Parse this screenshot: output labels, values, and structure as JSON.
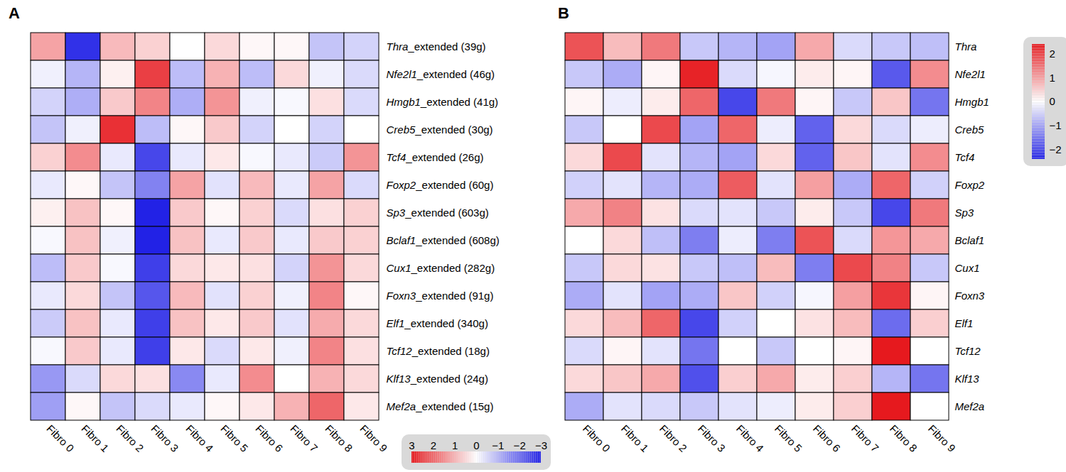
{
  "chart_data": [
    {
      "type": "heatmap",
      "title": "A",
      "x": [
        "Fibro 0",
        "Fibro 1",
        "Fibro 2",
        "Fibro 3",
        "Fibro 4",
        "Fibro 5",
        "Fibro 6",
        "Fibro 7",
        "Fibro 8",
        "Fibro 9"
      ],
      "y": [
        "Thra_extended (39g)",
        "Nfe2l1_extended (46g)",
        "Hmgb1_extended (41g)",
        "Creb5_extended (30g)",
        "Tcf4_extended (26g)",
        "Foxp2_extended (60g)",
        "Sp3_extended (603g)",
        "Bclaf1_extended (608g)",
        "Cux1_extended (282g)",
        "Foxn3_extended (91g)",
        "Elf1_extended (340g)",
        "Tcf12_extended (18g)",
        "Klf13_extended (24g)",
        "Mef2a_extended (15g)"
      ],
      "values": [
        [
          1.2,
          -2.8,
          0.9,
          0.6,
          0,
          0.5,
          0.1,
          0.1,
          -0.8,
          -0.6
        ],
        [
          -0.2,
          -1.0,
          0.2,
          2.5,
          -0.9,
          1.0,
          -0.9,
          0.5,
          -0.2,
          -0.5
        ],
        [
          -0.6,
          -1.1,
          0.7,
          1.6,
          -1.1,
          1.4,
          -0.2,
          -0.1,
          0.4,
          -0.5
        ],
        [
          -0.8,
          -0.2,
          2.7,
          -0.9,
          0.1,
          0.7,
          -0.6,
          0,
          -0.6,
          0
        ],
        [
          0.6,
          1.5,
          -0.3,
          -2.5,
          -0.3,
          0.3,
          -0.1,
          -0.3,
          -0.7,
          1.4
        ],
        [
          -0.3,
          0.1,
          -0.8,
          -1.7,
          1.2,
          -0.4,
          0.9,
          -0.3,
          1.2,
          -0.5
        ],
        [
          0.2,
          0.8,
          0.1,
          -3.0,
          0.7,
          0.1,
          0.6,
          -0.5,
          0.4,
          0.6
        ],
        [
          -0.1,
          0.8,
          -0.2,
          -3.0,
          0.8,
          -0.3,
          0.7,
          -0.3,
          0.7,
          0.6
        ],
        [
          -0.9,
          0.7,
          -0.1,
          -2.6,
          0.5,
          0.3,
          0.4,
          -0.6,
          1.4,
          0.5
        ],
        [
          -0.3,
          0.5,
          -0.8,
          -2.3,
          0.9,
          -0.4,
          0.6,
          -0.2,
          1.6,
          0.1
        ],
        [
          -0.7,
          0.8,
          -0.3,
          -2.6,
          0.8,
          0.3,
          0.7,
          -0.4,
          1.1,
          0.5
        ],
        [
          -0.1,
          0.7,
          -0.3,
          -2.6,
          0.3,
          -0.5,
          0.3,
          -0.2,
          1.6,
          0.4
        ],
        [
          -1.4,
          -0.5,
          0.5,
          0.4,
          -1.6,
          -0.3,
          1.5,
          0,
          1.0,
          0.5
        ],
        [
          -1.3,
          0.1,
          -0.8,
          -0.5,
          -0.3,
          0.1,
          0.3,
          1.0,
          2.0,
          0.3
        ]
      ],
      "color_range": [
        -3,
        3
      ],
      "color_ticks": [
        3,
        2,
        1,
        0,
        {
          "value": -1,
          "label": "−1"
        },
        {
          "value": -2,
          "label": "−2"
        },
        {
          "value": -3,
          "label": "−3"
        }
      ]
    },
    {
      "type": "heatmap",
      "title": "B",
      "x": [
        "Fibro 0",
        "Fibro 1",
        "Fibro 2",
        "Fibro 3",
        "Fibro 4",
        "Fibro 5",
        "Fibro 6",
        "Fibro 7",
        "Fibro 8",
        "Fibro 9"
      ],
      "y": [
        "Thra",
        "Nfe2l1",
        "Hmgb1",
        "Creb5",
        "Tcf4",
        "Foxp2",
        "Sp3",
        "Bclaf1",
        "Cux1",
        "Foxn3",
        "Elf1",
        "Tcf12",
        "Klf13",
        "Mef2a"
      ],
      "values": [
        [
          1.8,
          0.7,
          1.4,
          -0.6,
          -0.8,
          -1.0,
          0.9,
          -0.4,
          -0.6,
          -0.7
        ],
        [
          -0.6,
          -0.9,
          0.1,
          2.3,
          -0.4,
          -0.1,
          0.2,
          0.1,
          -1.8,
          1.2
        ],
        [
          0.1,
          -0.2,
          0.2,
          1.6,
          -2.0,
          1.4,
          0.1,
          -0.6,
          0.6,
          -1.5
        ],
        [
          -0.6,
          0,
          1.9,
          -1.0,
          1.6,
          -0.2,
          -1.7,
          0.4,
          -0.4,
          -0.2
        ],
        [
          0.4,
          1.9,
          -0.3,
          -0.8,
          -1.0,
          0.4,
          -1.7,
          0.6,
          -0.3,
          1.2
        ],
        [
          -0.5,
          -0.3,
          -0.8,
          -0.9,
          1.7,
          -0.3,
          1.0,
          -0.9,
          1.6,
          -0.5
        ],
        [
          0.9,
          1.3,
          0.3,
          -0.4,
          -0.3,
          -0.6,
          0.2,
          -0.6,
          -2.0,
          1.4
        ],
        [
          0,
          0.4,
          -0.7,
          -1.4,
          -0.2,
          -1.4,
          1.8,
          -0.4,
          1.1,
          0.9
        ],
        [
          -0.6,
          0.4,
          0.3,
          -0.6,
          -0.7,
          0.7,
          -1.4,
          1.9,
          1.3,
          -0.6
        ],
        [
          -0.9,
          -0.3,
          -1.0,
          -0.9,
          0.6,
          -0.5,
          -0.1,
          1.0,
          2.1,
          0.1
        ],
        [
          0.4,
          0.7,
          1.6,
          -2.0,
          -0.5,
          0,
          0.3,
          0.7,
          -1.6,
          0.5
        ],
        [
          -0.4,
          0.1,
          -0.3,
          -1.5,
          0,
          -0.6,
          0,
          0.1,
          2.4,
          0
        ],
        [
          0.4,
          0.6,
          0.9,
          -1.9,
          0.5,
          0.9,
          0.2,
          0.5,
          -0.8,
          -1.5
        ],
        [
          -0.9,
          -0.3,
          -0.4,
          -0.6,
          -0.3,
          -0.2,
          0.2,
          0.5,
          2.4,
          0
        ]
      ],
      "color_range": [
        -2.4,
        2.4
      ],
      "color_ticks": [
        2,
        1,
        0,
        {
          "value": -1,
          "label": "−1"
        },
        {
          "value": -2,
          "label": "−2"
        }
      ]
    }
  ]
}
